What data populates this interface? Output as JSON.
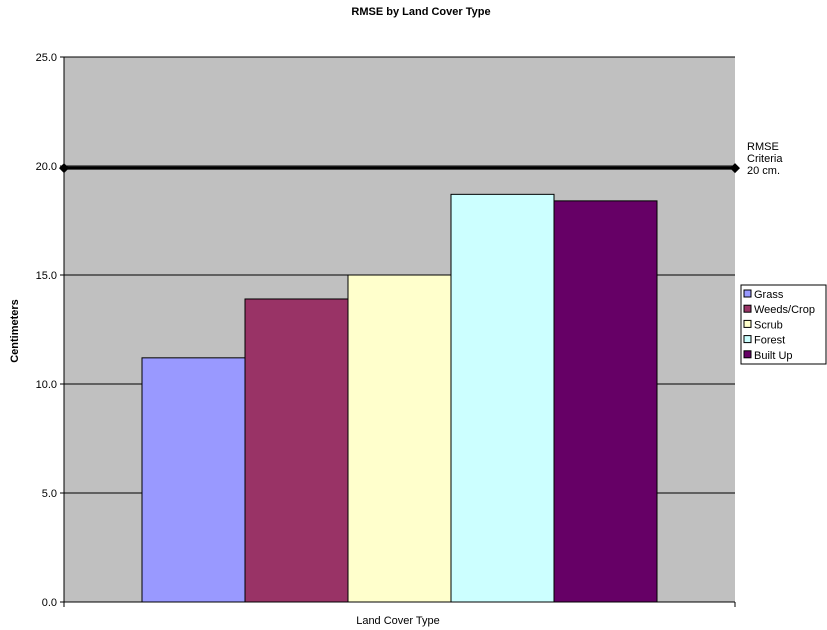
{
  "chart_data": {
    "type": "bar",
    "title": "RMSE by Land Cover Type",
    "xlabel": "Land Cover Type",
    "ylabel": "Centimeters",
    "ylim": [
      0,
      25
    ],
    "yticks": [
      "0.0",
      "5.0",
      "10.0",
      "15.0",
      "20.0",
      "25.0"
    ],
    "grid": true,
    "legend_position": "right",
    "series": [
      {
        "name": "Grass",
        "value": 11.2,
        "color": "#9999FF"
      },
      {
        "name": "Weeds/Crop",
        "value": 13.9,
        "color": "#993366"
      },
      {
        "name": "Scrub",
        "value": 15.0,
        "color": "#FFFFCC"
      },
      {
        "name": "Forest",
        "value": 18.7,
        "color": "#CCFFFF"
      },
      {
        "name": "Built Up",
        "value": 18.4,
        "color": "#660066"
      }
    ],
    "reference_line": {
      "value": 19.9,
      "label_lines": [
        "RMSE",
        "Criteria",
        "20 cm."
      ]
    },
    "plot_background": "#C0C0C0"
  }
}
